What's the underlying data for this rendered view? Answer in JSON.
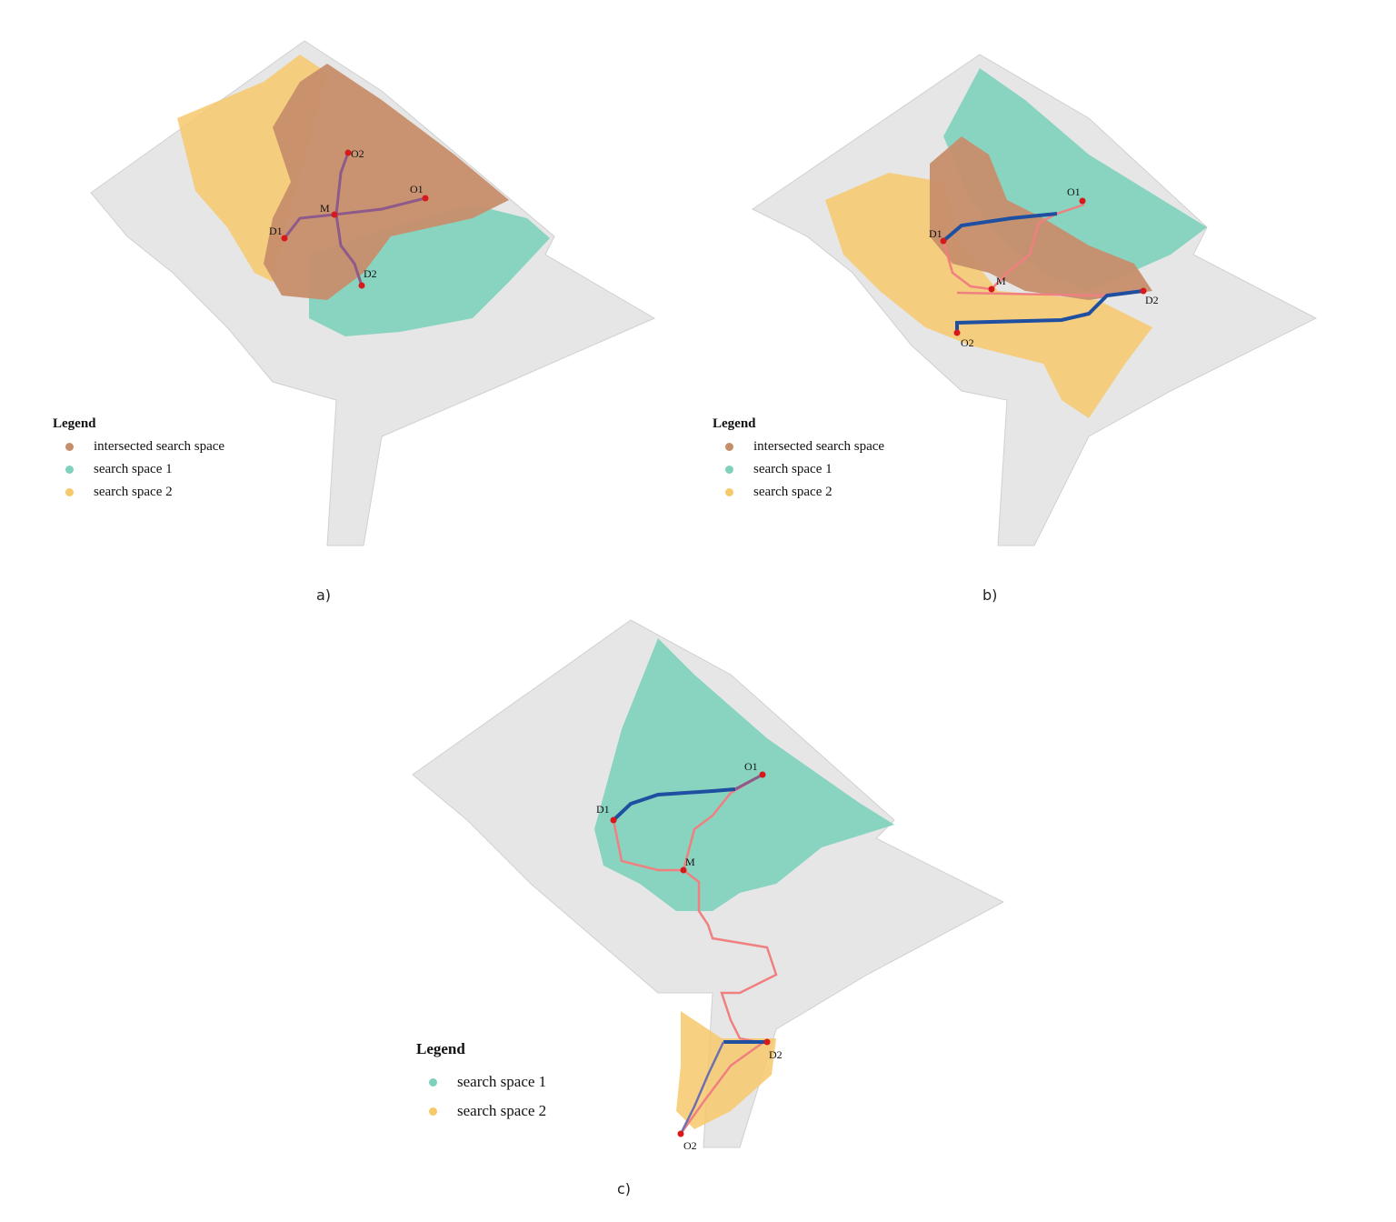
{
  "colors": {
    "intersected": "#c78e6b",
    "space1": "#7ed2bd",
    "space2": "#f6c96b",
    "street": "#dcdcdc",
    "route_pink": "#f08080",
    "route_blue": "#1f4fa0",
    "route_purple": "#8e5a8a",
    "node": "#d7191c"
  },
  "legend": {
    "title": "Legend",
    "intersected_label": "intersected search space",
    "space1_label": "search space 1",
    "space2_label": "search space 2"
  },
  "captions": {
    "a": "a)",
    "b": "b)",
    "c": "c)"
  },
  "nodes": {
    "O1": "O1",
    "O2": "O2",
    "D1": "D1",
    "D2": "D2",
    "M": "M"
  }
}
